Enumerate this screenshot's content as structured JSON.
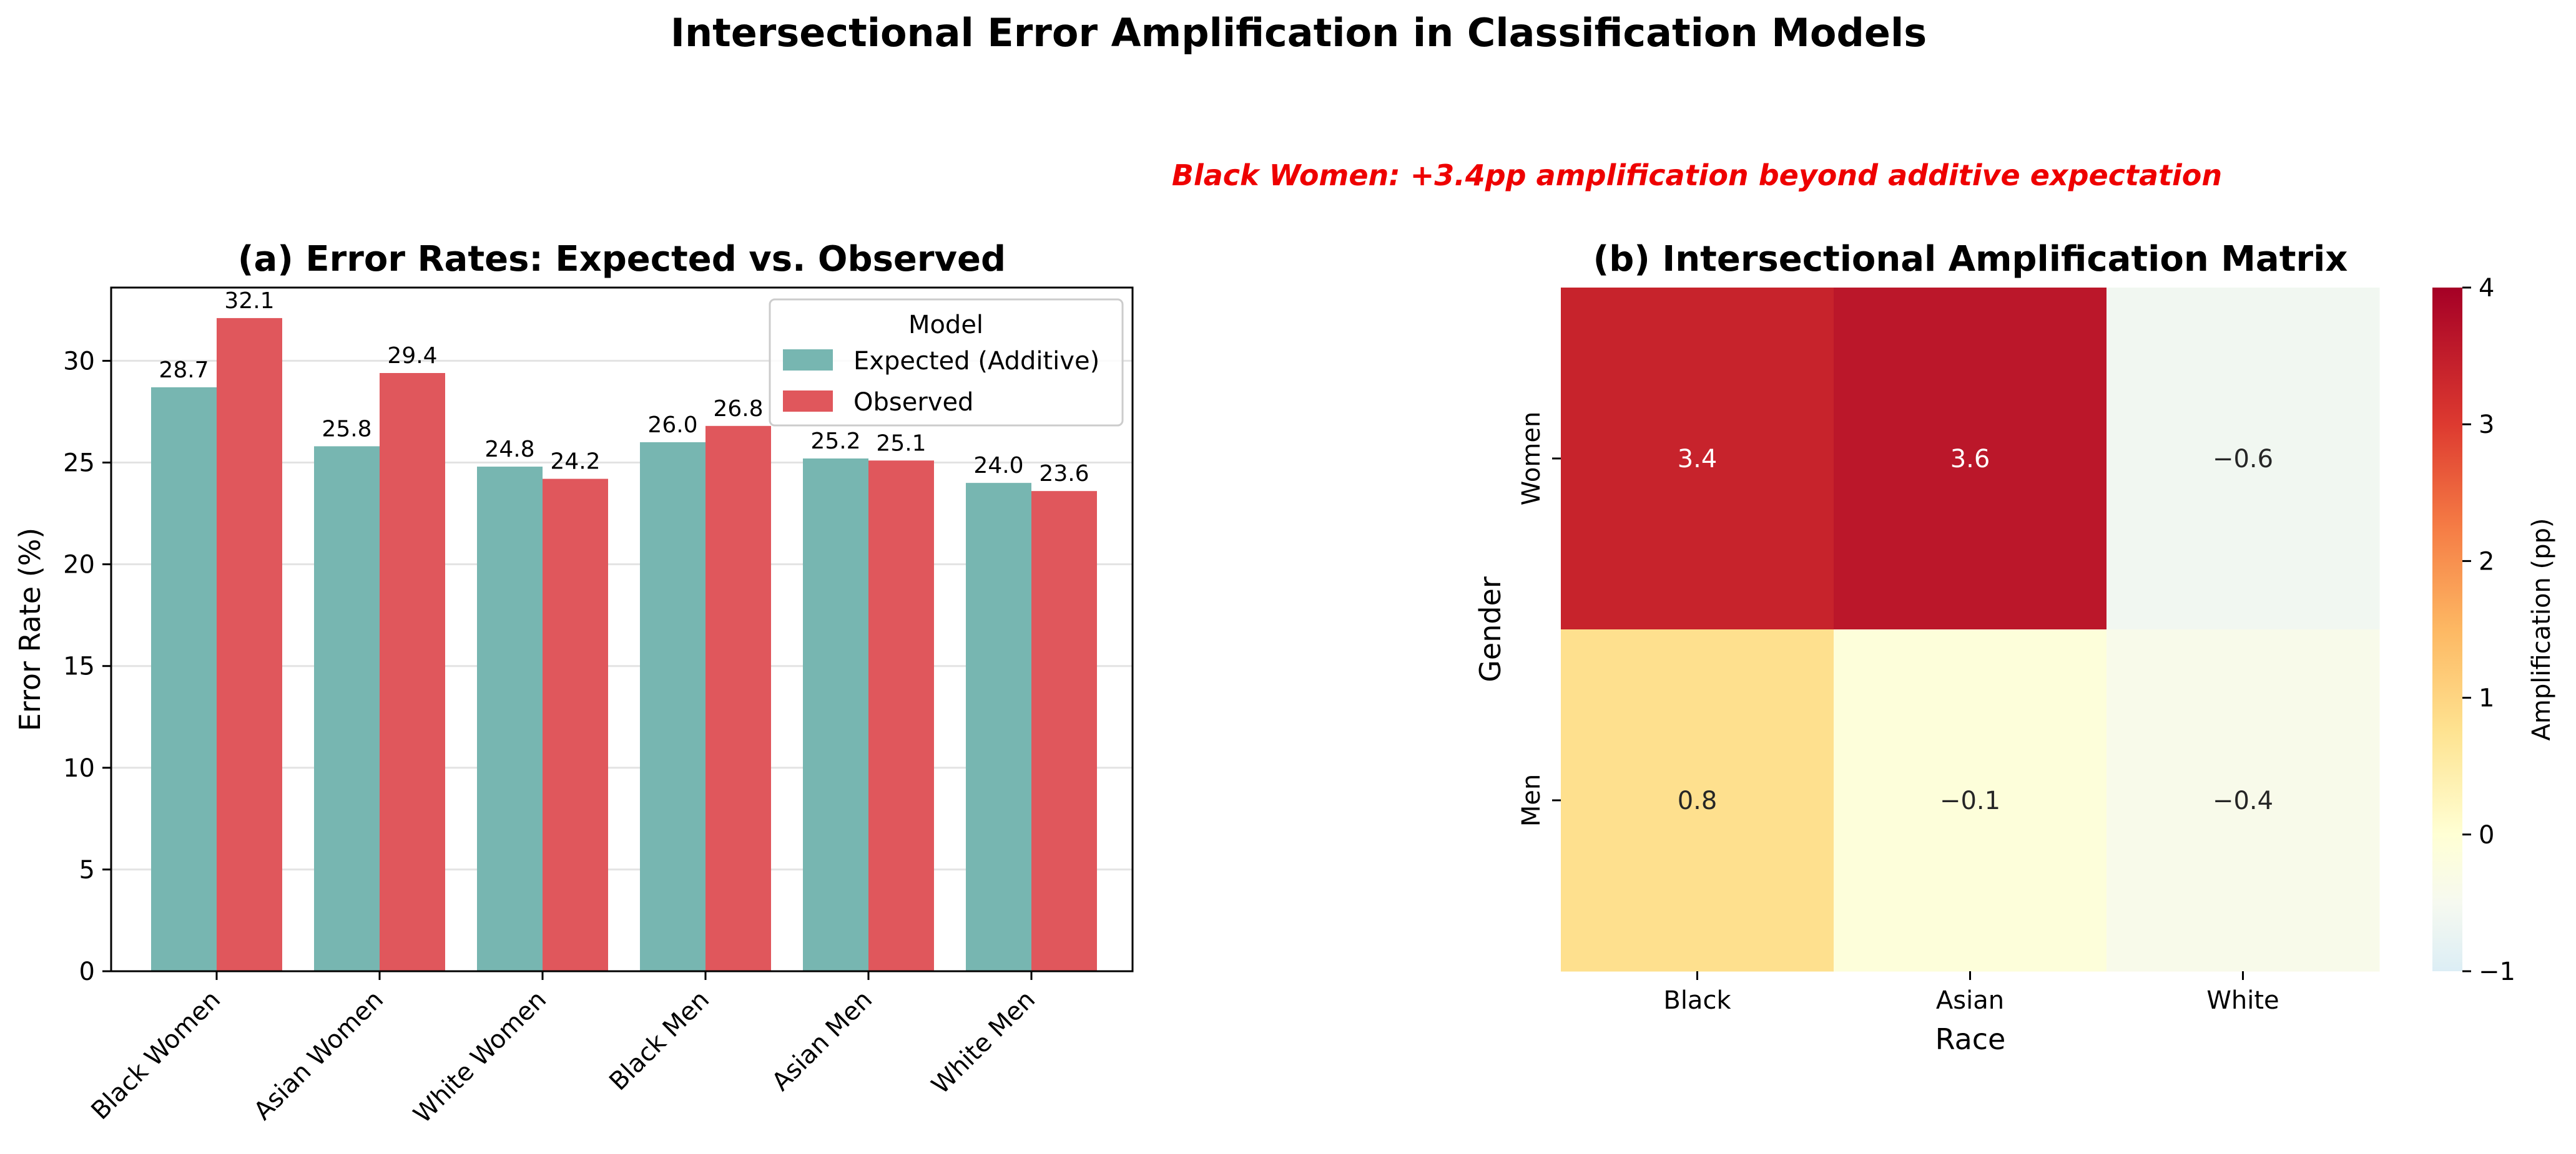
{
  "figure": {
    "title": "Intersectional Error Amplification in Classification Models",
    "annotation": "Black Women: +3.4pp amplification beyond additive expectation",
    "annotation_color": "#ee0000"
  },
  "chart_data": [
    {
      "type": "bar",
      "title": "(a) Error Rates: Expected vs. Observed",
      "xlabel": "",
      "ylabel": "Error Rate (%)",
      "ylim": [
        0,
        33.6
      ],
      "yticks": [
        0,
        5,
        10,
        15,
        20,
        25,
        30
      ],
      "grid": true,
      "categories": [
        "Black Women",
        "Asian Women",
        "White Women",
        "Black Men",
        "Asian Men",
        "White Men"
      ],
      "legend": {
        "title": "Model",
        "placement": "top-right"
      },
      "series": [
        {
          "name": "Expected (Additive)",
          "color": "#77b6b1",
          "values": [
            28.7,
            25.8,
            24.8,
            26.0,
            25.2,
            24.0
          ]
        },
        {
          "name": "Observed",
          "color": "#e0575c",
          "values": [
            32.1,
            29.4,
            24.2,
            26.8,
            25.1,
            23.6
          ]
        }
      ]
    },
    {
      "type": "heatmap",
      "title": "(b) Intersectional Amplification Matrix",
      "xlabel": "Race",
      "ylabel": "Gender",
      "x_categories": [
        "Black",
        "Asian",
        "White"
      ],
      "y_categories": [
        "Women",
        "Men"
      ],
      "values": [
        [
          3.4,
          3.6,
          -0.6
        ],
        [
          0.8,
          -0.1,
          -0.4
        ]
      ],
      "colorbar": {
        "label": "Amplification (pp)",
        "range": [
          -1,
          4
        ],
        "ticks": [
          -1,
          0,
          1,
          2,
          3,
          4
        ],
        "colormap": "YlOrRd (diverging from blue at low end)"
      }
    }
  ]
}
